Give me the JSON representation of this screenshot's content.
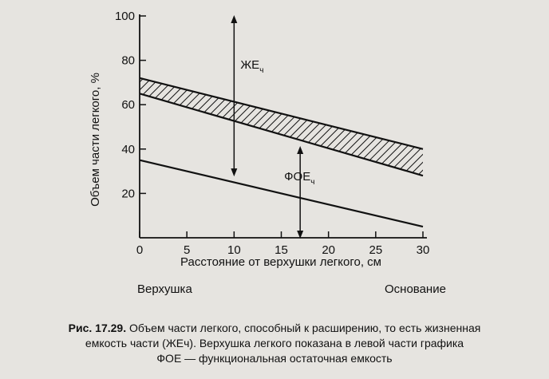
{
  "chart_data": {
    "type": "line",
    "xlabel": "Расстояние от верхушки легкого, см",
    "ylabel": "Объем части легкого, %",
    "xlim": [
      0,
      30
    ],
    "ylim": [
      0,
      100
    ],
    "x_ticks": [
      0,
      5,
      10,
      15,
      20,
      25,
      30
    ],
    "y_ticks": [
      20,
      40,
      60,
      80,
      100
    ],
    "series": [
      {
        "key": "upper",
        "x": [
          0,
          30
        ],
        "values": [
          72,
          40
        ]
      },
      {
        "key": "middle",
        "x": [
          0,
          30
        ],
        "values": [
          65,
          28
        ]
      },
      {
        "key": "frc",
        "x": [
          0,
          30
        ],
        "values": [
          35,
          5
        ]
      }
    ],
    "annotations": {
      "vc_label": "ЖЕ",
      "vc_sub": "ч",
      "vc_arrow": {
        "x": 10,
        "y_from": 28,
        "y_to": 100
      },
      "frc_label": "ФОЕ",
      "frc_sub": "ч",
      "frc_arrow": {
        "x": 17,
        "y_from": 0,
        "y_to": 41
      }
    },
    "bottom_labels": {
      "left": "Верхушка",
      "right": "Основание"
    }
  },
  "caption": {
    "fig_no": "Рис. 17.29.",
    "line1": " Объем части легкого, способный к расширению, то есть жизненная",
    "line2": "емкость части (ЖЕч). Верхушка легкого показана в левой части графика",
    "line3": "ФОЕ — функциональная остаточная емкость"
  },
  "colors": {
    "ink": "#111111",
    "background": "#e6e4e0"
  }
}
